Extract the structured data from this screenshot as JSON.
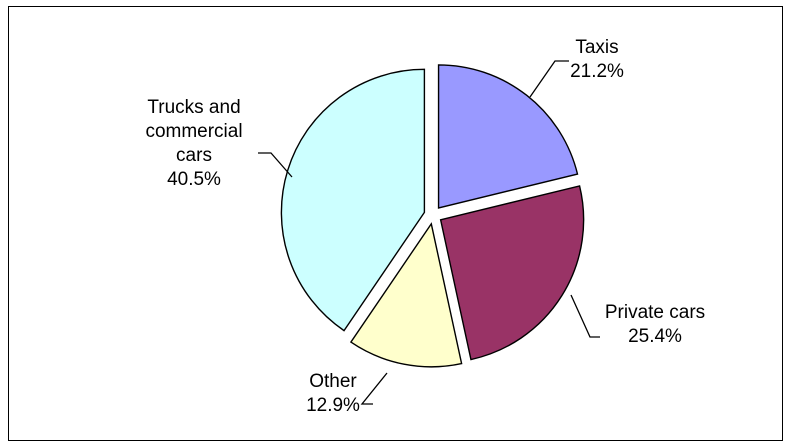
{
  "chart_data": {
    "type": "pie",
    "exploded": true,
    "slices": [
      {
        "label_lines": [
          "Taxis"
        ],
        "pct_text": "21.2%",
        "value": 21.2,
        "color": "#9999ff"
      },
      {
        "label_lines": [
          "Private cars"
        ],
        "pct_text": "25.4%",
        "value": 25.4,
        "color": "#993366"
      },
      {
        "label_lines": [
          "Other"
        ],
        "pct_text": "12.9%",
        "value": 12.9,
        "color": "#ffffcc"
      },
      {
        "label_lines": [
          "Trucks and",
          "commercial",
          "cars"
        ],
        "pct_text": "40.5%",
        "value": 40.5,
        "color": "#ccffff"
      }
    ],
    "legend": "none"
  }
}
